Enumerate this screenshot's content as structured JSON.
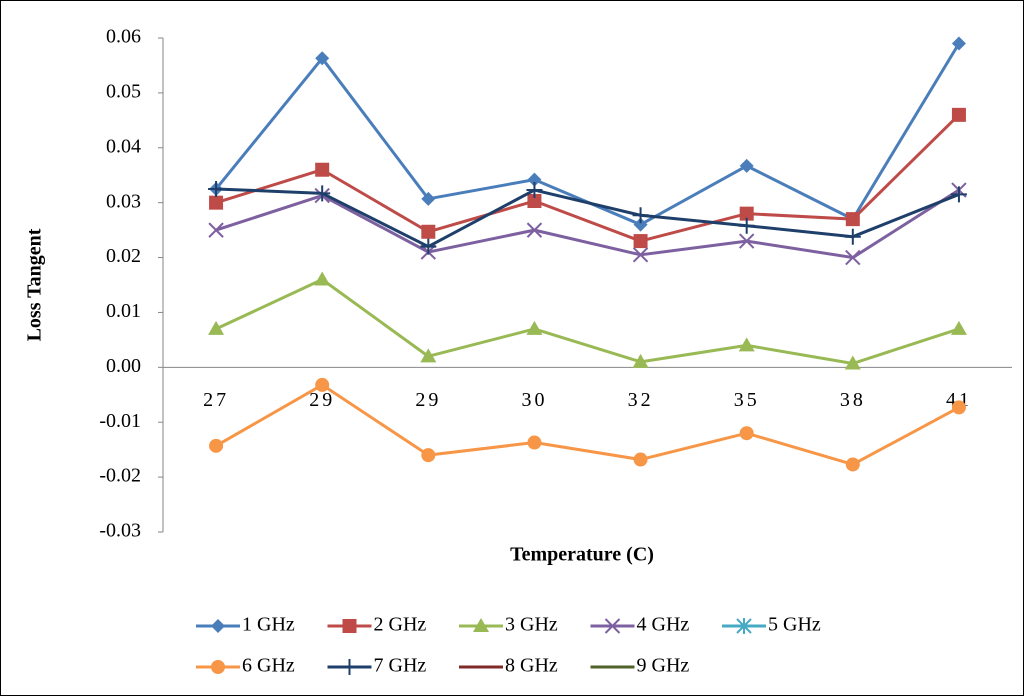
{
  "chart_data": {
    "type": "line",
    "y_label": "Loss Tangent",
    "x_label": "Temperature (C)",
    "categories": [
      "27",
      "29",
      "29",
      "30",
      "32",
      "35",
      "38",
      "41"
    ],
    "ylim": [
      -0.03,
      0.06
    ],
    "yticks": [
      -0.03,
      -0.02,
      -0.01,
      {
        "value": 0,
        "label": "0.00"
      },
      0.01,
      0.02,
      0.03,
      0.04,
      0.05,
      0.06
    ],
    "grid": false,
    "legend": "bottom",
    "series": [
      {
        "name": "1 GHz",
        "color": "#4a7ebb",
        "marker": "diamond",
        "values": [
          0.0325,
          0.0563,
          0.0307,
          0.0342,
          0.026,
          0.0367,
          0.027,
          0.059
        ]
      },
      {
        "name": "2 GHz",
        "color": "#be4b48",
        "marker": "square",
        "values": [
          0.03,
          0.036,
          0.0247,
          0.0303,
          0.023,
          0.028,
          0.027,
          0.046
        ]
      },
      {
        "name": "3 GHz",
        "color": "#98b954",
        "marker": "triangle",
        "values": [
          0.007,
          0.016,
          0.002,
          0.007,
          0.001,
          0.004,
          0.0007,
          0.007
        ]
      },
      {
        "name": "4 GHz",
        "color": "#7d60a0",
        "marker": "x",
        "values": [
          0.025,
          0.0313,
          0.021,
          0.025,
          0.0205,
          0.023,
          0.02,
          0.0323
        ]
      },
      {
        "name": "5 GHz",
        "color": "#46aac5",
        "marker": "star",
        "values": [
          null,
          null,
          null,
          null,
          null,
          null,
          null,
          null
        ]
      },
      {
        "name": "6 GHz",
        "color": "#f79646",
        "marker": "circle",
        "values": [
          -0.0143,
          -0.0032,
          -0.016,
          -0.0137,
          -0.0168,
          -0.012,
          -0.0177,
          -0.0073
        ]
      },
      {
        "name": "7 GHz",
        "color": "#1f3f6b",
        "marker": "plus",
        "values": [
          0.0325,
          0.0317,
          0.022,
          0.0323,
          0.0277,
          0.0258,
          0.0238,
          0.0315
        ]
      },
      {
        "name": "8 GHz",
        "color": "#7f2a27",
        "marker": "none",
        "values": [
          null,
          null,
          null,
          null,
          null,
          null,
          null,
          null
        ]
      },
      {
        "name": "9 GHz",
        "color": "#4f6228",
        "marker": "none",
        "values": [
          null,
          null,
          null,
          null,
          null,
          null,
          null,
          null
        ]
      }
    ]
  }
}
